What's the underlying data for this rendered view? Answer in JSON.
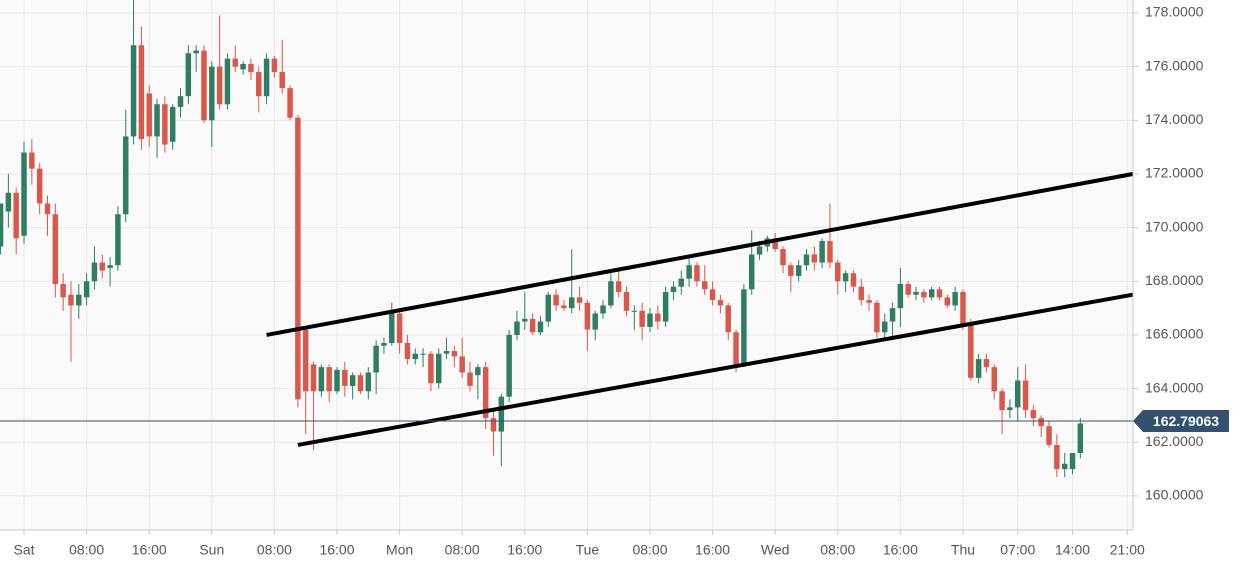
{
  "chart_data": {
    "type": "candlestick",
    "x": [
      -3,
      -2,
      -1,
      0,
      1,
      2,
      3,
      4,
      5,
      6,
      7,
      8,
      9,
      10,
      11,
      12,
      13,
      14,
      15,
      16,
      17,
      18,
      19,
      20,
      21,
      22,
      23,
      24,
      25,
      26,
      27,
      28,
      29,
      30,
      31,
      32,
      33,
      34,
      35,
      36,
      37,
      38,
      39,
      40,
      41,
      42,
      43,
      44,
      45,
      46,
      47,
      48,
      49,
      50,
      51,
      52,
      53,
      54,
      55,
      56,
      57,
      58,
      59,
      60,
      61,
      62,
      63,
      64,
      65,
      66,
      67,
      68,
      69,
      70,
      71,
      72,
      73,
      74,
      75,
      76,
      77,
      78,
      79,
      80,
      81,
      82,
      83,
      84,
      85,
      86,
      87,
      88,
      89,
      90,
      91,
      92,
      93,
      94,
      95,
      96,
      97,
      98,
      99,
      100,
      101,
      102,
      103,
      104,
      105,
      106,
      107,
      108,
      109,
      110,
      111,
      112,
      113,
      114,
      115,
      116,
      117,
      118,
      119,
      120,
      121,
      122,
      123,
      124,
      125,
      126,
      127,
      128,
      129,
      130,
      131,
      132,
      133,
      134,
      135
    ],
    "open": [
      169.3,
      170.6,
      171.3,
      169.7,
      172.8,
      172.2,
      170.9,
      170.5,
      167.9,
      167.5,
      167.1,
      167.4,
      168.0,
      168.7,
      168.5,
      168.6,
      170.5,
      173.4,
      176.8,
      175.0,
      173.4,
      174.6,
      173.2,
      174.5,
      174.9,
      176.5,
      176.6,
      174.0,
      176.0,
      174.6,
      176.3,
      175.9,
      176.1,
      175.8,
      174.9,
      176.3,
      175.8,
      175.2,
      174.1,
      166.2,
      164.9,
      163.9,
      164.8,
      163.9,
      164.7,
      164.1,
      164.5,
      163.9,
      164.6,
      165.6,
      165.7,
      166.8,
      165.7,
      165.1,
      165.3,
      165.3,
      164.2,
      165.3,
      165.4,
      165.2,
      164.6,
      164.5,
      164.8,
      162.9,
      162.4,
      163.7,
      166.0,
      166.5,
      166.6,
      166.1,
      166.5,
      167.5,
      167.1,
      167.0,
      167.4,
      167.2,
      166.2,
      166.8,
      167.1,
      168.0,
      167.6,
      166.9,
      166.9,
      166.3,
      166.8,
      166.5,
      167.6,
      167.8,
      168.1,
      168.6,
      168.0,
      167.7,
      167.3,
      167.1,
      166.1,
      164.9,
      167.7,
      169.0,
      169.3,
      169.6,
      169.2,
      168.6,
      168.2,
      168.6,
      169.0,
      168.7,
      169.5,
      168.7,
      168.0,
      168.3,
      167.8,
      167.3,
      167.2,
      166.1,
      166.5,
      167.0,
      167.9,
      167.5,
      167.6,
      167.4,
      167.7,
      167.4,
      167.1,
      167.6,
      166.4,
      164.4,
      165.1,
      164.8,
      163.9,
      163.2,
      163.3,
      164.3,
      163.2,
      162.9,
      162.6,
      161.9,
      161.0,
      161.0,
      161.6
    ],
    "high": [
      170.9,
      172.0,
      171.5,
      173.2,
      173.3,
      172.4,
      171.2,
      170.9,
      168.3,
      168.0,
      167.9,
      168.3,
      169.3,
      169.0,
      168.9,
      170.8,
      174.4,
      178.6,
      177.5,
      175.3,
      174.8,
      174.9,
      174.6,
      175.2,
      176.8,
      176.8,
      176.8,
      176.2,
      177.9,
      176.5,
      176.8,
      176.2,
      176.3,
      176.0,
      176.5,
      176.4,
      177.0,
      175.3,
      174.2,
      166.3,
      165.0,
      164.9,
      164.9,
      164.8,
      165.0,
      164.6,
      164.6,
      164.8,
      165.8,
      165.9,
      167.2,
      167.0,
      166.0,
      165.5,
      165.5,
      165.4,
      165.5,
      165.9,
      165.6,
      165.9,
      165.0,
      164.9,
      165.0,
      163.2,
      163.8,
      166.2,
      166.9,
      167.6,
      166.8,
      166.7,
      167.6,
      167.7,
      167.3,
      169.2,
      167.8,
      167.3,
      166.9,
      167.3,
      168.3,
      168.4,
      167.8,
      167.1,
      167.2,
      167.0,
      167.1,
      167.8,
      168.0,
      168.4,
      168.9,
      168.7,
      168.6,
      168.0,
      167.5,
      167.2,
      166.2,
      167.9,
      169.9,
      169.5,
      169.7,
      169.8,
      169.3,
      168.7,
      168.8,
      169.2,
      169.3,
      169.6,
      170.9,
      168.8,
      168.4,
      168.4,
      168.1,
      167.5,
      167.3,
      166.8,
      167.2,
      168.5,
      168.0,
      167.8,
      167.7,
      167.8,
      167.8,
      167.5,
      167.8,
      167.7,
      166.6,
      165.3,
      165.3,
      164.9,
      164.0,
      163.6,
      164.8,
      164.9,
      163.4,
      163.0,
      162.8,
      162.3,
      161.6,
      161.6,
      162.9
    ],
    "low": [
      169.0,
      170.0,
      169.0,
      169.4,
      171.6,
      170.5,
      169.7,
      167.4,
      166.9,
      165.0,
      166.6,
      167.1,
      167.7,
      168.1,
      167.8,
      168.4,
      170.2,
      173.1,
      172.9,
      173.0,
      172.6,
      172.8,
      172.9,
      174.1,
      174.6,
      175.8,
      173.9,
      173.0,
      174.4,
      174.4,
      175.8,
      175.7,
      175.5,
      174.3,
      174.6,
      175.6,
      175.0,
      174.0,
      163.3,
      162.3,
      161.7,
      163.7,
      163.5,
      163.8,
      163.7,
      163.6,
      163.8,
      163.6,
      163.8,
      165.3,
      165.6,
      165.3,
      164.9,
      164.9,
      164.8,
      163.9,
      164.0,
      165.1,
      164.8,
      164.4,
      163.9,
      163.6,
      162.5,
      161.5,
      161.1,
      163.5,
      165.8,
      166.2,
      166.0,
      166.0,
      166.3,
      166.9,
      166.9,
      166.8,
      166.9,
      165.4,
      165.8,
      166.6,
      167.0,
      167.4,
      166.7,
      166.2,
      165.8,
      166.1,
      166.2,
      166.3,
      167.3,
      167.5,
      167.8,
      167.8,
      167.5,
      167.1,
      166.8,
      165.8,
      164.6,
      164.8,
      167.5,
      168.8,
      169.1,
      169.1,
      168.3,
      167.6,
      168.0,
      168.4,
      168.4,
      168.5,
      168.5,
      167.5,
      167.6,
      167.6,
      167.1,
      166.9,
      165.9,
      165.8,
      165.9,
      166.3,
      167.4,
      167.3,
      167.2,
      167.3,
      167.3,
      167.0,
      166.9,
      166.2,
      164.3,
      164.2,
      164.6,
      163.6,
      162.3,
      162.9,
      162.8,
      162.9,
      162.6,
      162.2,
      161.8,
      160.7,
      160.7,
      160.8,
      161.4
    ],
    "close": [
      170.9,
      171.3,
      169.6,
      172.8,
      172.2,
      170.9,
      170.5,
      167.9,
      167.4,
      167.1,
      167.5,
      168.0,
      168.7,
      168.4,
      168.6,
      170.5,
      173.4,
      176.8,
      173.3,
      173.4,
      174.6,
      173.1,
      174.5,
      174.9,
      176.5,
      176.6,
      174.0,
      176.0,
      174.6,
      176.3,
      176.0,
      176.1,
      175.8,
      174.9,
      176.3,
      175.8,
      175.2,
      174.1,
      163.6,
      163.9,
      163.9,
      164.8,
      163.9,
      164.7,
      164.1,
      164.5,
      163.9,
      164.6,
      165.6,
      165.7,
      166.8,
      165.7,
      165.1,
      165.3,
      165.3,
      164.2,
      165.3,
      165.4,
      165.2,
      164.6,
      164.1,
      164.8,
      162.9,
      162.4,
      163.7,
      166.0,
      166.5,
      166.6,
      166.1,
      166.5,
      167.5,
      167.1,
      167.0,
      167.4,
      167.2,
      166.2,
      166.8,
      167.1,
      168.0,
      167.6,
      166.9,
      166.9,
      166.3,
      166.8,
      166.5,
      167.6,
      167.8,
      168.1,
      168.6,
      168.0,
      167.7,
      167.3,
      167.1,
      166.1,
      164.9,
      167.7,
      169.0,
      169.3,
      169.6,
      169.2,
      168.6,
      168.2,
      168.6,
      169.0,
      168.7,
      169.5,
      168.7,
      168.0,
      168.3,
      167.8,
      167.3,
      167.2,
      166.1,
      166.5,
      167.0,
      167.9,
      167.5,
      167.6,
      167.4,
      167.7,
      167.4,
      167.1,
      167.6,
      166.4,
      164.4,
      165.1,
      164.8,
      163.9,
      163.2,
      163.3,
      164.3,
      163.2,
      162.9,
      162.6,
      161.9,
      161.0,
      161.2,
      161.6,
      162.7
    ],
    "up_color": "#2f7d62",
    "down_color": "#d9584a",
    "current_price": 162.79063,
    "current_price_color": "#34506f",
    "trendlines": [
      {
        "x": [
          31,
          141.7
        ],
        "y": [
          166.0,
          172.0
        ],
        "color": "#000000"
      },
      {
        "x": [
          35,
          141.7
        ],
        "y": [
          161.9,
          167.5
        ],
        "color": "#000000"
      }
    ],
    "xlim": [
      -3.07,
      141.73
    ],
    "ylim": [
      158.73,
      178.485
    ],
    "xticks": [
      {
        "value": 0,
        "label": "Sat"
      },
      {
        "value": 8,
        "label": "08:00"
      },
      {
        "value": 16,
        "label": "16:00"
      },
      {
        "value": 24,
        "label": "Sun"
      },
      {
        "value": 32,
        "label": "08:00"
      },
      {
        "value": 40,
        "label": "16:00"
      },
      {
        "value": 48,
        "label": "Mon"
      },
      {
        "value": 56,
        "label": "08:00"
      },
      {
        "value": 64,
        "label": "16:00"
      },
      {
        "value": 72,
        "label": "Tue"
      },
      {
        "value": 80,
        "label": "08:00"
      },
      {
        "value": 88,
        "label": "16:00"
      },
      {
        "value": 96,
        "label": "Wed"
      },
      {
        "value": 104,
        "label": "08:00"
      },
      {
        "value": 112,
        "label": "16:00"
      },
      {
        "value": 120,
        "label": "Thu"
      },
      {
        "value": 127,
        "label": "07:00"
      },
      {
        "value": 134,
        "label": "14:00"
      },
      {
        "value": 141,
        "label": "21:00"
      }
    ],
    "yticks": [
      {
        "value": 160,
        "label": "160.0000"
      },
      {
        "value": 162,
        "label": "162.0000"
      },
      {
        "value": 164,
        "label": "164.0000"
      },
      {
        "value": 166,
        "label": "166.0000"
      },
      {
        "value": 168,
        "label": "168.0000"
      },
      {
        "value": 170,
        "label": "170.0000"
      },
      {
        "value": 172,
        "label": "172.0000"
      },
      {
        "value": 174,
        "label": "174.0000"
      },
      {
        "value": 176,
        "label": "176.0000"
      },
      {
        "value": 178,
        "label": "178.0000"
      }
    ],
    "grid": true
  }
}
